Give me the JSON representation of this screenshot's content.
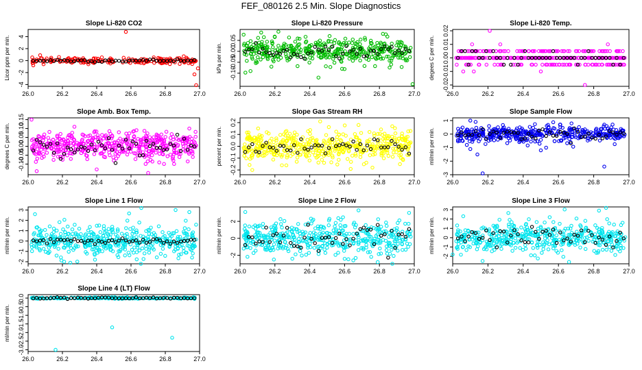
{
  "title": "FEF_080126  2.5 Min. Slope Diagnostics",
  "x_axis": {
    "range": [
      26.0,
      27.0
    ],
    "ticks": [
      "26.0",
      "26.2",
      "26.4",
      "26.6",
      "26.8",
      "27.0"
    ]
  },
  "chart_data": [
    {
      "type": "scatter",
      "title": "Slope Li-820 CO2",
      "ylabel": "Licor ppm per min.",
      "ylim": [
        -4.3,
        5.2
      ],
      "yticks": [
        -4,
        -2,
        0,
        2,
        4
      ],
      "color": "#ff0000",
      "n": 200,
      "spread": 0.25,
      "black_spread": 0.12,
      "outliers": [
        [
          26.03,
          -0.8
        ],
        [
          26.07,
          0.9
        ],
        [
          26.09,
          -0.6
        ],
        [
          26.18,
          0.6
        ],
        [
          26.57,
          4.8
        ],
        [
          26.97,
          -2.3
        ],
        [
          26.98,
          -4.1
        ],
        [
          26.99,
          -1.3
        ]
      ]
    },
    {
      "type": "scatter",
      "title": "Slope Li-820 Pressure",
      "ylabel": "kPa per min.",
      "ylim": [
        -0.16,
        0.1
      ],
      "yticks": [
        -0.1,
        -0.05,
        0.0,
        0.05
      ],
      "color": "#00bb00",
      "n": 420,
      "spread": 0.028,
      "black_spread": 0.016,
      "outliers": [
        [
          26.06,
          -0.09
        ],
        [
          26.18,
          -0.07
        ],
        [
          26.22,
          0.09
        ],
        [
          26.45,
          -0.12
        ],
        [
          26.82,
          0.08
        ],
        [
          26.99,
          -0.15
        ]
      ]
    },
    {
      "type": "scatter",
      "title": "Slope Li-820 Temp.",
      "ylabel": "degees C per min.",
      "ylim": [
        -0.021,
        0.021
      ],
      "yticks": [
        -0.02,
        -0.01,
        0.0,
        0.01,
        0.02
      ],
      "color": "#ff00ff",
      "n": 360,
      "spread": 0.0045,
      "black_spread": 0.004,
      "levels": [
        -0.005,
        0.0,
        0.005
      ],
      "level_weights": [
        0.22,
        0.56,
        0.22
      ],
      "outliers": [
        [
          26.21,
          0.02
        ],
        [
          26.06,
          -0.01
        ],
        [
          26.11,
          0.01
        ],
        [
          26.27,
          0.01
        ],
        [
          26.75,
          -0.02
        ],
        [
          26.05,
          0.005
        ],
        [
          26.5,
          -0.01
        ],
        [
          26.88,
          0.01
        ],
        [
          26.12,
          -0.01
        ]
      ]
    },
    {
      "type": "scatter",
      "title": "Slope Amb. Box Temp.",
      "ylabel": "degrees C per min.",
      "ylim": [
        -0.16,
        0.16
      ],
      "yticks": [
        -0.1,
        -0.05,
        0.0,
        0.05,
        0.1,
        0.15
      ],
      "color": "#ff00ff",
      "n": 480,
      "spread": 0.038,
      "black_spread": 0.025,
      "outliers": [
        [
          26.02,
          0.15
        ],
        [
          26.05,
          -0.14
        ],
        [
          26.4,
          -0.13
        ],
        [
          26.7,
          -0.15
        ],
        [
          26.27,
          0.11
        ],
        [
          26.94,
          0.1
        ]
      ]
    },
    {
      "type": "scatter",
      "title": "Slope Gas Stream RH",
      "ylabel": "percent per min.",
      "ylim": [
        -0.24,
        0.24
      ],
      "yticks": [
        -0.2,
        -0.1,
        0.0,
        0.1,
        0.2
      ],
      "color": "#ffff00",
      "n": 480,
      "spread": 0.065,
      "black_spread": 0.04,
      "outliers": [
        [
          26.07,
          -0.2
        ],
        [
          26.46,
          0.21
        ],
        [
          26.68,
          0.18
        ],
        [
          26.76,
          -0.18
        ],
        [
          26.24,
          -0.16
        ]
      ]
    },
    {
      "type": "scatter",
      "title": "Slope Sample Flow",
      "ylabel": "ml/min per min.",
      "ylim": [
        -3.0,
        1.2
      ],
      "yticks": [
        -3,
        -2,
        -1,
        0,
        1
      ],
      "color": "#0000ee",
      "n": 420,
      "spread": 0.28,
      "black_spread": 0.2,
      "outliers": [
        [
          26.1,
          1.0
        ],
        [
          26.14,
          -1.5
        ],
        [
          26.17,
          -2.9
        ],
        [
          26.13,
          0.9
        ],
        [
          26.5,
          -1.2
        ],
        [
          26.53,
          -1.0
        ],
        [
          26.86,
          0.7
        ],
        [
          26.86,
          -2.4
        ],
        [
          26.1,
          -1.1
        ],
        [
          26.08,
          -0.8
        ]
      ]
    },
    {
      "type": "scatter",
      "title": "Slope Line 1 Flow",
      "ylabel": "ml/min per min.",
      "ylim": [
        -2.2,
        3.3
      ],
      "yticks": [
        -2,
        -1,
        0,
        1,
        2,
        3
      ],
      "color": "#00e5ee",
      "n": 460,
      "spread": 0.75,
      "black_spread": 0.15,
      "outliers": [
        [
          26.04,
          2.6
        ],
        [
          26.66,
          3.2
        ],
        [
          26.86,
          3.0
        ],
        [
          26.94,
          2.8
        ],
        [
          26.21,
          -2.0
        ],
        [
          26.39,
          -1.8
        ]
      ]
    },
    {
      "type": "scatter",
      "title": "Slope Line 2 Flow",
      "ylabel": "ml/min per min.",
      "ylim": [
        -3.0,
        3.7
      ],
      "yticks": [
        -2,
        0,
        2
      ],
      "color": "#00e5ee",
      "n": 460,
      "spread": 1.0,
      "black_spread": 0.75,
      "outliers": [
        [
          26.03,
          3.1
        ],
        [
          26.68,
          3.3
        ],
        [
          26.97,
          3.0
        ],
        [
          26.65,
          -2.6
        ],
        [
          26.79,
          -2.8
        ],
        [
          26.3,
          -2.4
        ]
      ]
    },
    {
      "type": "scatter",
      "title": "Slope Line 3 Flow",
      "ylabel": "ml/min per min.",
      "ylim": [
        -2.8,
        3.3
      ],
      "yticks": [
        -2,
        -1,
        0,
        1,
        2,
        3
      ],
      "color": "#00e5ee",
      "n": 460,
      "spread": 0.8,
      "black_spread": 0.7,
      "outliers": [
        [
          26.66,
          -2.6
        ],
        [
          26.87,
          3.2
        ],
        [
          26.83,
          2.9
        ],
        [
          26.06,
          2.3
        ],
        [
          26.0,
          -1.8
        ],
        [
          26.55,
          2.2
        ]
      ]
    },
    {
      "type": "scatter",
      "title": "Slope Line 4 (LT) Flow",
      "ylabel": "ml/min per min.",
      "ylim": [
        -3.1,
        0.2
      ],
      "yticks": [
        -3.0,
        -2.5,
        -2.0,
        -1.5,
        -1.0,
        -0.5,
        0.0
      ],
      "color": "#00e5ee",
      "n": 200,
      "spread": 0.02,
      "black_spread": 0.02,
      "outliers": [
        [
          26.16,
          -3.0
        ],
        [
          26.49,
          -1.7
        ],
        [
          26.84,
          -2.3
        ]
      ]
    }
  ]
}
